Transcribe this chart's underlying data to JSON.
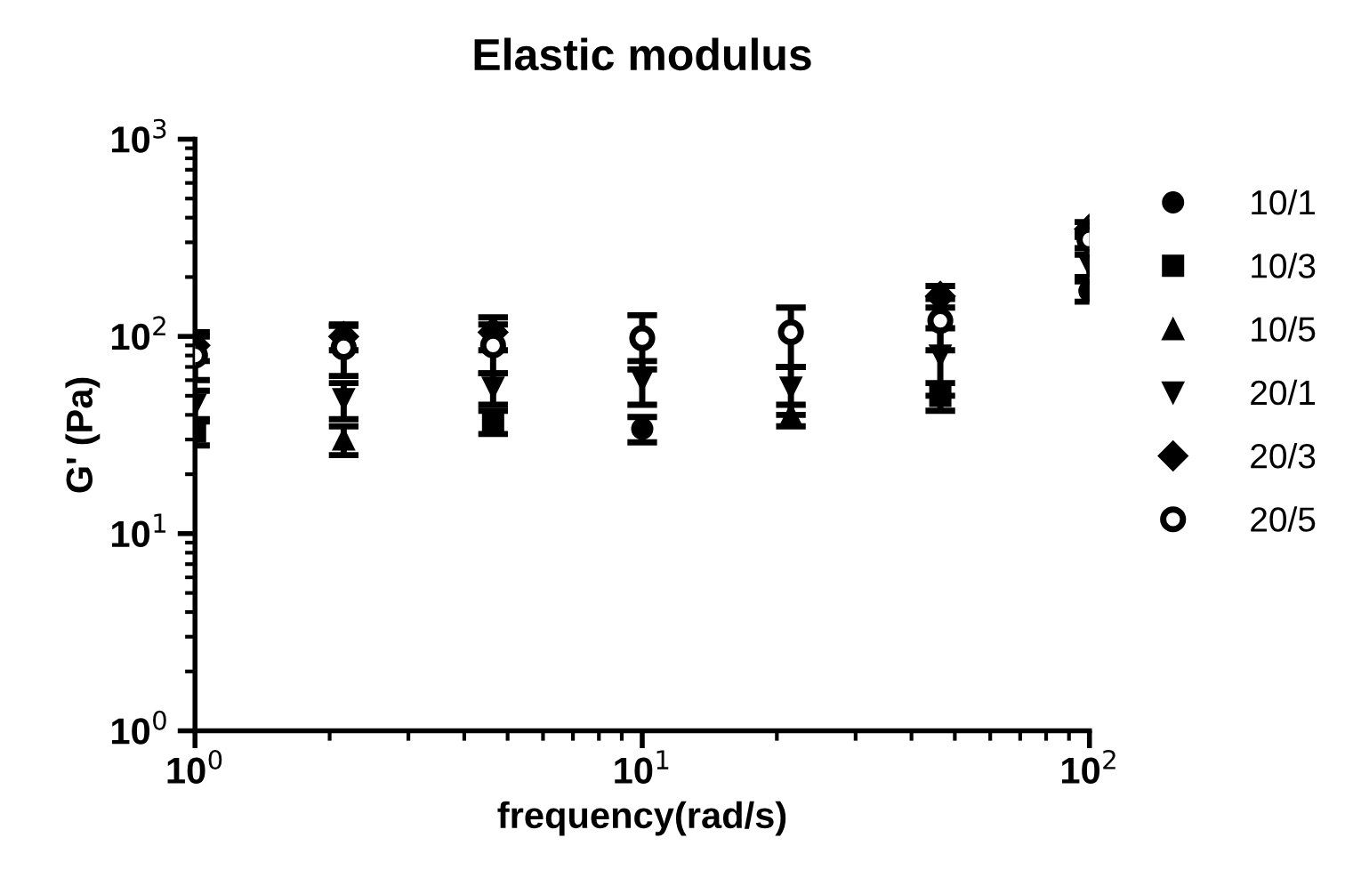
{
  "chart_data": {
    "type": "scatter",
    "title": "Elastic modulus",
    "xlabel": "frequency(rad/s)",
    "ylabel": "G' (Pa)",
    "x": [
      1,
      2.15,
      4.64,
      10,
      21.5,
      46.4,
      100
    ],
    "log": "xy",
    "xlim": [
      1,
      100
    ],
    "ylim": [
      1,
      1000
    ],
    "xticks": [
      {
        "value": 1,
        "label": "10$^{0}$"
      },
      {
        "value": 10,
        "label": "10$^{1}$"
      },
      {
        "value": 100,
        "label": "10$^{2}$"
      }
    ],
    "yticks": [
      {
        "value": 1,
        "label": "10$^{0}$"
      },
      {
        "value": 10,
        "label": "10$^{1}$"
      },
      {
        "value": 100,
        "label": "10$^{2}$"
      },
      {
        "value": 1000,
        "label": "10$^{3}$"
      }
    ],
    "grid": false,
    "legend": "right",
    "series": [
      {
        "name": "10/1",
        "color": "#000000",
        "marker": "circle",
        "values": [
          null,
          null,
          null,
          34,
          null,
          null,
          170
        ],
        "errors": [
          null,
          null,
          null,
          5,
          null,
          null,
          20
        ]
      },
      {
        "name": "10/3",
        "color": "#000000",
        "marker": "square",
        "values": [
          33,
          null,
          37,
          null,
          null,
          50,
          null
        ],
        "errors": [
          5,
          null,
          5,
          null,
          null,
          8,
          null
        ]
      },
      {
        "name": "10/5",
        "color": "#000000",
        "marker": "triangle",
        "values": [
          null,
          30,
          null,
          null,
          40,
          null,
          null
        ],
        "errors": [
          null,
          5,
          null,
          null,
          5,
          null,
          null
        ]
      },
      {
        "name": "20/1",
        "color": "#000000",
        "marker": "triangle_down",
        "values": [
          45,
          48,
          55,
          60,
          55,
          80,
          230
        ],
        "errors": [
          8,
          10,
          10,
          15,
          15,
          30,
          30
        ]
      },
      {
        "name": "20/3",
        "color": "#000000",
        "marker": "diamond",
        "values": [
          90,
          100,
          105,
          null,
          null,
          160,
          350
        ],
        "errors": [
          15,
          15,
          20,
          null,
          null,
          20,
          30
        ]
      },
      {
        "name": "20/5",
        "color": "#000000",
        "marker": "open_circle",
        "values": [
          80,
          88,
          90,
          98,
          105,
          120,
          310
        ],
        "errors": [
          20,
          25,
          25,
          30,
          35,
          35,
          30
        ]
      }
    ]
  }
}
